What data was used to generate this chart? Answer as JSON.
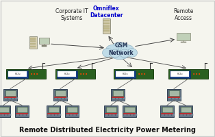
{
  "title": "Remote Distributed Electricity Power Metering",
  "title_fontsize": 7,
  "bg_color": "#f5f5ee",
  "border_color": "#aaaaaa",
  "omniflex_text": "Omniflex\nDatacenter",
  "omniflex_color": "#0000cc",
  "gsm_text": "GSM\nNetwork",
  "corporate_text": "Corporate IT\nSystems",
  "remote_text": "Remote\nAccess",
  "cloud_color": "#c0dce8",
  "cloud_edge": "#88aabb",
  "arrow_color": "#444444",
  "line_color": "#666666",
  "gw_green": "#2a6020",
  "gw_blue": "#1a4488",
  "gw_green2": "#336622",
  "meter_body": "#4a5a6a",
  "meter_screen": "#aabbaa",
  "meter_border": "#223322",
  "meter_red": "#cc2222",
  "server_body": "#d8d0b0",
  "server_slot": "#c0b888",
  "monitor_screen": "#c0d0b8",
  "laptop_body": "#c8c0a0",
  "laptop_screen": "#b8ccb0"
}
